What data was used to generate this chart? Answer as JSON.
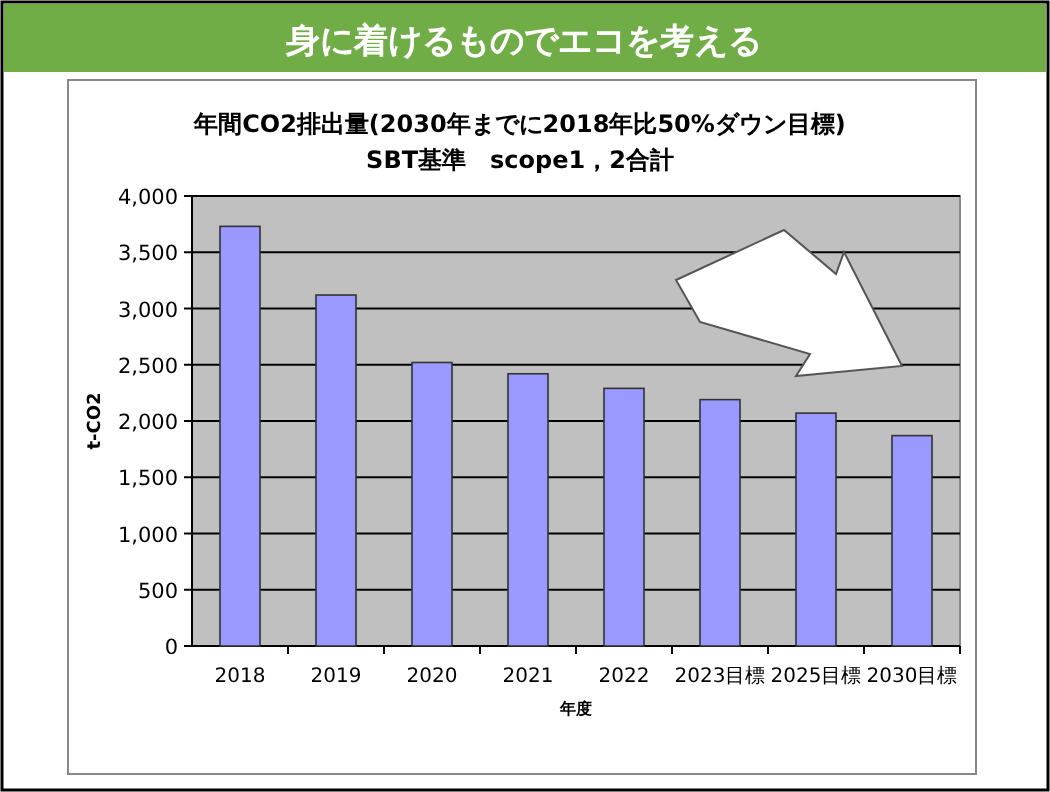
{
  "chart_data": {
    "type": "bar",
    "title": "年間CO2排出量(2030年までに2018年比50%ダウン目標)",
    "subtitle": "SBT基準　scope1，2合計",
    "annotations": [
      "身に着けるものでエコを考える"
    ],
    "categories": [
      "2018",
      "2019",
      "2020",
      "2021",
      "2022",
      "2023目標",
      "2025目標",
      "2030目標"
    ],
    "values": [
      3730,
      3120,
      2520,
      2420,
      2290,
      2190,
      2070,
      1870
    ],
    "color": "#9999ff",
    "xlabel": "年度",
    "ylabel": "t-CO2",
    "ylim": [
      0,
      4000
    ],
    "yticks": [
      {
        "value": 0,
        "label": "0"
      },
      {
        "value": 500,
        "label": "500"
      },
      {
        "value": 1000,
        "label": "1,000"
      },
      {
        "value": 1500,
        "label": "1,500"
      },
      {
        "value": 2000,
        "label": "2,000"
      },
      {
        "value": 2500,
        "label": "2,500"
      },
      {
        "value": 3000,
        "label": "3,000"
      },
      {
        "value": 3500,
        "label": "3,500"
      },
      {
        "value": 4000,
        "label": "4,000"
      }
    ],
    "grid": "y"
  }
}
